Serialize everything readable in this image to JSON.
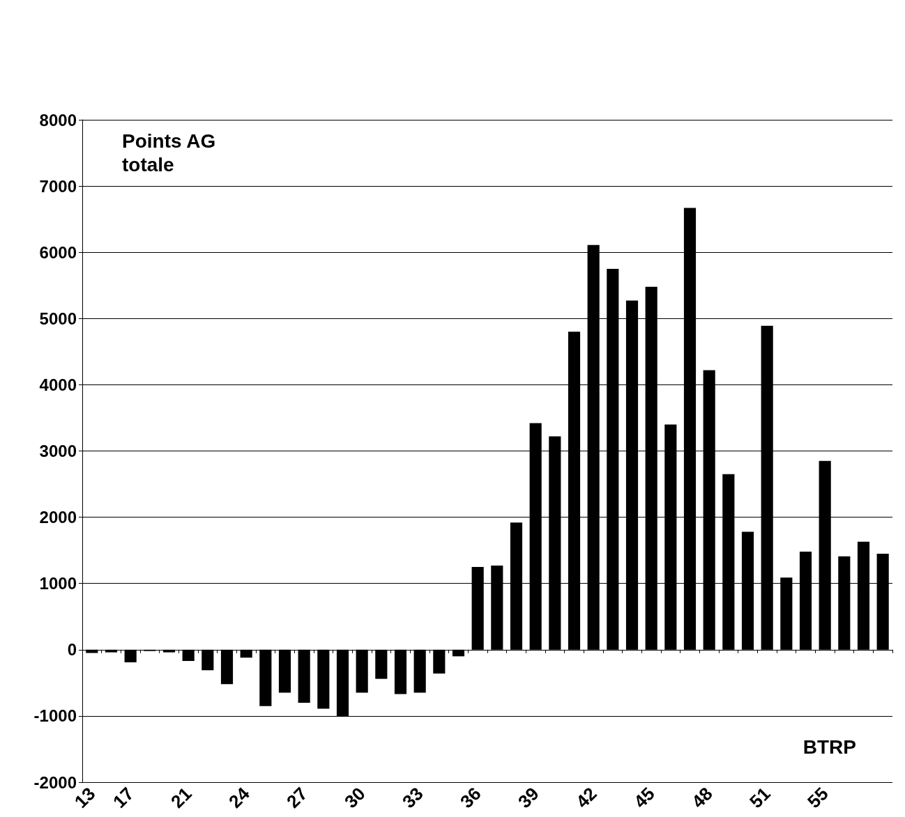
{
  "chart_data": {
    "type": "bar",
    "ylabel": "Points AG totale",
    "xlabel": "BTRP",
    "categories": [
      "13",
      null,
      "17",
      null,
      null,
      "21",
      null,
      null,
      "24",
      null,
      null,
      "27",
      null,
      null,
      "30",
      null,
      null,
      "33",
      null,
      null,
      "36",
      null,
      null,
      "39",
      null,
      null,
      "42",
      null,
      null,
      "45",
      null,
      null,
      "48",
      null,
      null,
      "51",
      null,
      null,
      "55",
      null,
      null,
      null
    ],
    "values": [
      -50,
      -40,
      -190,
      -20,
      -40,
      -170,
      -310,
      -520,
      -120,
      -850,
      -650,
      -800,
      -890,
      -1000,
      -650,
      -440,
      -670,
      -650,
      -360,
      -100,
      1250,
      1270,
      1920,
      3420,
      3220,
      4800,
      6110,
      5750,
      5270,
      5480,
      3400,
      6670,
      4220,
      2650,
      1780,
      4890,
      1090,
      1480,
      2850,
      1410,
      1630,
      1450
    ],
    "color": "#000000",
    "ylim": [
      -2000,
      8000
    ],
    "yticks": [
      -2000,
      -1000,
      0,
      1000,
      2000,
      3000,
      4000,
      5000,
      6000,
      7000,
      8000
    ],
    "grid": "y"
  }
}
